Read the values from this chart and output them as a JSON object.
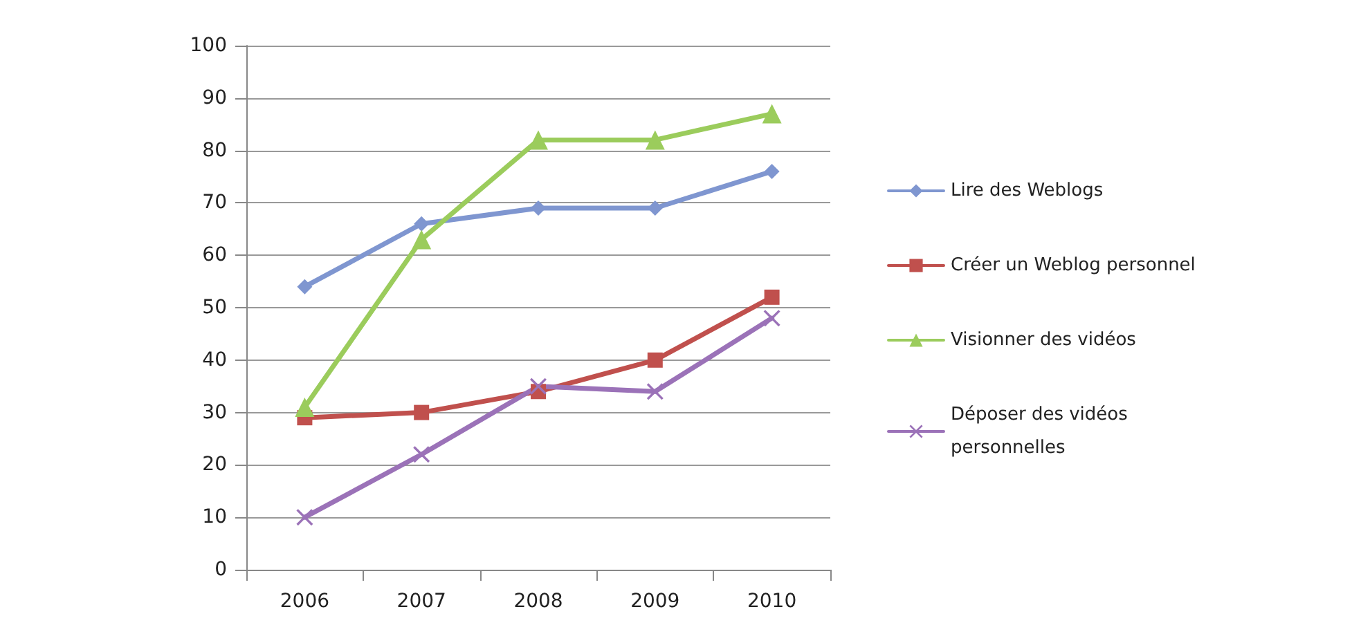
{
  "chart_data": {
    "type": "line",
    "categories": [
      "2006",
      "2007",
      "2008",
      "2009",
      "2010"
    ],
    "series": [
      {
        "name": "Lire des Weblogs",
        "color": "#7f96d0",
        "marker": "diamond",
        "values": [
          54,
          66,
          69,
          69,
          76
        ]
      },
      {
        "name": "Créer un Weblog personnel",
        "color": "#c0504d",
        "marker": "square",
        "values": [
          29,
          30,
          34,
          40,
          52
        ]
      },
      {
        "name": "Visionner des vidéos",
        "color": "#9bcc5c",
        "marker": "triangle",
        "values": [
          31,
          63,
          82,
          82,
          87
        ]
      },
      {
        "name": "Déposer des vidéos personnelles",
        "color": "#9b72b8",
        "marker": "cross",
        "values": [
          10,
          22,
          35,
          34,
          48
        ]
      }
    ],
    "ylim": [
      0,
      100
    ],
    "yticks": [
      0,
      10,
      20,
      30,
      40,
      50,
      60,
      70,
      80,
      90,
      100
    ],
    "grid": "y",
    "legend": "right",
    "line_style": "solid"
  }
}
